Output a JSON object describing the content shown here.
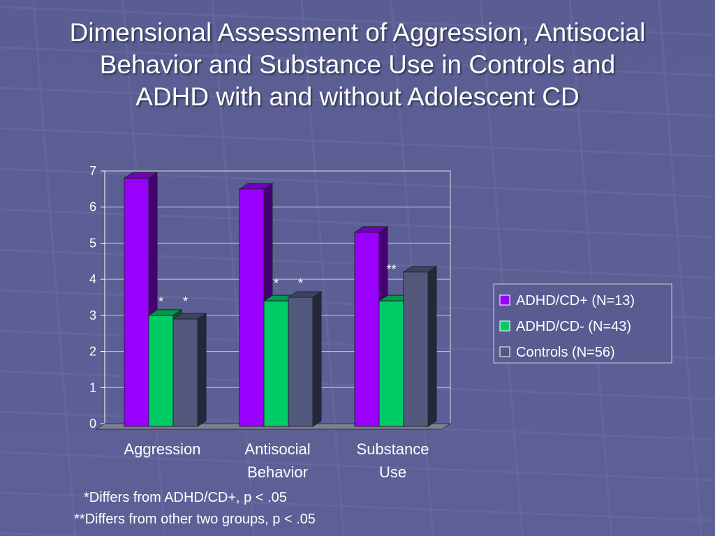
{
  "title_lines": [
    "Dimensional Assessment of Aggression, Antisocial",
    "Behavior and Substance Use in Controls and",
    "ADHD with and without Adolescent CD"
  ],
  "colors": {
    "background": "#5b5e94",
    "adhd_cd_plus": "#9900ff",
    "adhd_cd_minus": "#00cc66",
    "controls": "#53587d"
  },
  "chart_data": {
    "type": "bar",
    "categories": [
      "Aggression",
      "Antisocial Behavior",
      "Substance Use"
    ],
    "category_label_lines": [
      [
        "Aggression"
      ],
      [
        "Antisocial",
        "Behavior"
      ],
      [
        "Substance",
        "Use"
      ]
    ],
    "series": [
      {
        "name": "ADHD/CD+ (N=13)",
        "values": [
          6.8,
          6.5,
          5.3
        ],
        "color": "#9900ff"
      },
      {
        "name": "ADHD/CD- (N=43)",
        "values": [
          3.0,
          3.4,
          3.4
        ],
        "color": "#00cc66"
      },
      {
        "name": "Controls (N=56)",
        "values": [
          2.9,
          3.5,
          4.2
        ],
        "color": "#53587d"
      }
    ],
    "significance_marks": [
      {
        "category": "Aggression",
        "marks": [
          "*",
          "*"
        ]
      },
      {
        "category": "Antisocial Behavior",
        "marks": [
          "*",
          "*"
        ]
      },
      {
        "category": "Substance Use",
        "marks": [
          "**"
        ]
      }
    ],
    "yticks": [
      "0",
      "1",
      "2",
      "3",
      "4",
      "5",
      "6",
      "7"
    ],
    "ylim": [
      0,
      7
    ],
    "grid": true,
    "legend_position": "right",
    "xlabel": "",
    "ylabel": "",
    "three_d": true
  },
  "notes": [
    "*Differs from ADHD/CD+, p < .05",
    "**Differs from other two groups, p < .05"
  ]
}
